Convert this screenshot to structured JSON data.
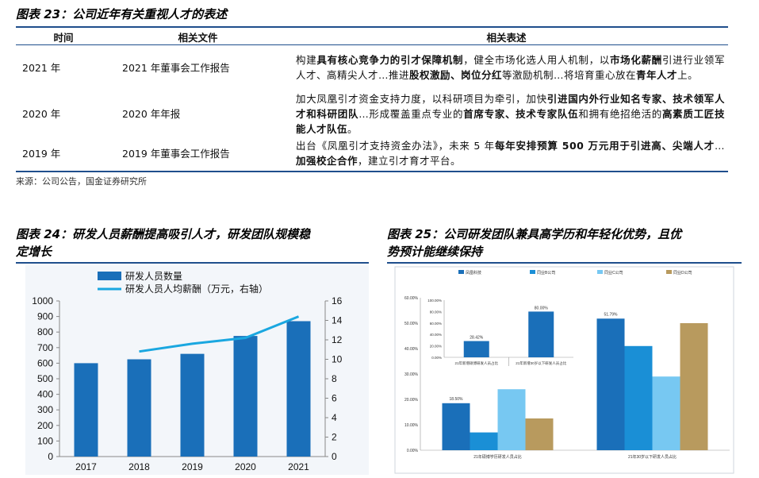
{
  "fig23": {
    "title": "图表 23：公司近年有关重视人才的表述",
    "headers": [
      "时间",
      "相关文件",
      "相关表述"
    ],
    "rows": [
      {
        "year": "2021 年",
        "doc": "2021 年董事会工作报告",
        "desc": [
          {
            "t": "构建",
            "b": false
          },
          {
            "t": "具有核心竞争力的引才保障机制",
            "b": true
          },
          {
            "t": "，健全市场化选人用人机制，以",
            "b": false
          },
          {
            "t": "市场化薪酬",
            "b": true
          },
          {
            "t": "引进行业领军人才、高精尖人才…推进",
            "b": false
          },
          {
            "t": "股权激励、岗位分红",
            "b": true
          },
          {
            "t": "等激励机制…将培育重心放在",
            "b": false
          },
          {
            "t": "青年人才",
            "b": true
          },
          {
            "t": "上。",
            "b": false
          }
        ]
      },
      {
        "year": "2020 年",
        "doc": "2020 年年报",
        "desc": [
          {
            "t": "加大凤凰引才资金支持力度，以科研项目为牵引，加快",
            "b": false
          },
          {
            "t": "引进国内外行业知名专家、技术领军人才和科研团队",
            "b": true
          },
          {
            "t": "…形成覆盖重点专业的",
            "b": false
          },
          {
            "t": "首席专家、技术专家队伍",
            "b": true
          },
          {
            "t": "和拥有绝招绝活的",
            "b": false
          },
          {
            "t": "高素质工匠技能人才队伍",
            "b": true
          },
          {
            "t": "。",
            "b": false
          }
        ]
      },
      {
        "year": "2019 年",
        "doc": "2019 年董事会工作报告",
        "desc": [
          {
            "t": "出台《凤凰引才支持资金办法》，未来 5 年",
            "b": false
          },
          {
            "t": "每年安排预算 500 万元用于引进高、尖端人才",
            "b": true
          },
          {
            "t": "…",
            "b": false
          },
          {
            "t": "加强校企合作",
            "b": true
          },
          {
            "t": "，建立引才育才平台。",
            "b": false
          }
        ]
      }
    ],
    "source": "来源：公司公告，国金证券研究所"
  },
  "fig24": {
    "title_line1": "图表 24：研发人员薪酬提高吸引人才，研发团队规模稳",
    "title_line2": "定增长"
  },
  "fig25": {
    "title_line1": "图表 25：公司研发团队兼具高学历和年轻化优势，且优",
    "title_line2": "势预计能继续保持"
  },
  "chart_data": [
    {
      "type": "bar",
      "title": "",
      "categories": [
        "2017",
        "2018",
        "2019",
        "2020",
        "2021"
      ],
      "series": [
        {
          "name": "研发人员数量",
          "kind": "bar",
          "axis": "left",
          "color": "#1a6fb9",
          "values": [
            600,
            625,
            660,
            775,
            870
          ]
        },
        {
          "name": "研发人员人均薪酬（万元，右轴）",
          "kind": "line",
          "axis": "right",
          "color": "#1aa7e0",
          "values": [
            null,
            10.8,
            11.6,
            12.2,
            14.4
          ]
        }
      ],
      "ylim": [
        0,
        1000
      ],
      "yticks": [
        0,
        100,
        200,
        300,
        400,
        500,
        600,
        700,
        800,
        900,
        1000
      ],
      "y2lim": [
        0,
        16
      ],
      "y2ticks": [
        0,
        2,
        4,
        6,
        8,
        10,
        12,
        14,
        16
      ],
      "legend": "top-left"
    },
    {
      "type": "bar",
      "legend_entries": [
        {
          "name": "凤凰科技",
          "color": "#1a6fb9"
        },
        {
          "name": "同业B公司",
          "color": "#1a8fd6"
        },
        {
          "name": "同业C公司",
          "color": "#77c8f2"
        },
        {
          "name": "同业D公司",
          "color": "#b89a5e"
        }
      ],
      "main": {
        "categories": [
          "21年硕博学历研发人员占比",
          "21年30岁以下研发人员占比"
        ],
        "series": [
          {
            "name": "凤凰科技",
            "values": [
              18.5,
              51.79
            ]
          },
          {
            "name": "同业B公司",
            "values": [
              7.0,
              41.0
            ]
          },
          {
            "name": "同业C公司",
            "values": [
              24.0,
              29.0
            ]
          },
          {
            "name": "同业D公司",
            "values": [
              12.5,
              50.0
            ]
          }
        ],
        "data_labels": [
          "18.50%",
          "51.79%"
        ],
        "ylim": [
          0,
          60
        ],
        "yticks": [
          "0.00%",
          "10.00%",
          "20.00%",
          "30.00%",
          "40.00%",
          "50.00%",
          "60.00%"
        ]
      },
      "inset": {
        "categories": [
          "21年新增硕博研发人员占比",
          "21年新增30岁以下研发人员占比"
        ],
        "values": [
          28.42,
          80.0
        ],
        "data_labels": [
          "28.42%",
          "80.00%"
        ],
        "ylim": [
          0,
          100
        ],
        "yticks": [
          "0.00%",
          "20.00%",
          "40.00%",
          "60.00%",
          "80.00%",
          "100.00%"
        ]
      }
    }
  ]
}
